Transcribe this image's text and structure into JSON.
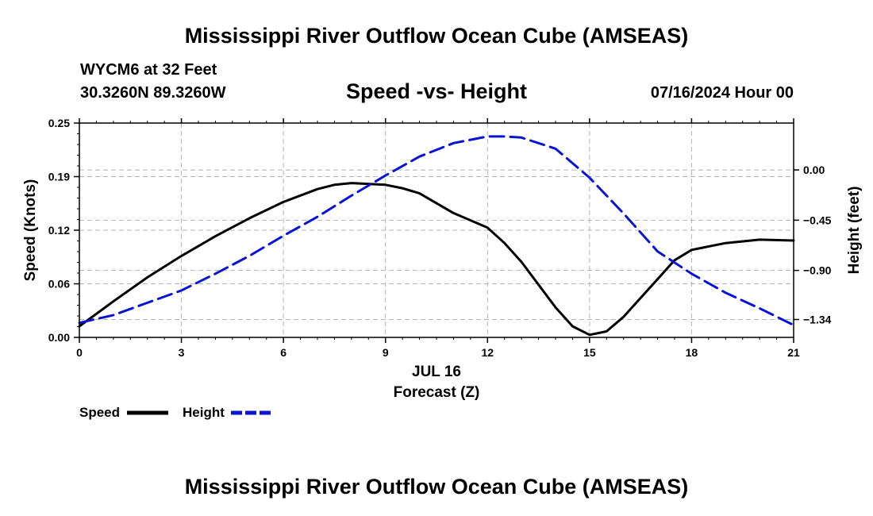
{
  "header": {
    "title": "Mississippi River Outflow Ocean Cube (AMSEAS)",
    "station": "WYCM6 at 32 Feet",
    "coordinates": "30.3260N  89.3260W",
    "chart_title": "Speed -vs- Height",
    "datetime": "07/16/2024 Hour 00"
  },
  "footer": {
    "title": "Mississippi River Outflow Ocean Cube (AMSEAS)"
  },
  "colors": {
    "speed": "#000000",
    "height": "#0a14d2",
    "grid": "#b4b4b4"
  },
  "chart_data": {
    "type": "line",
    "title": "Speed -vs- Height",
    "xlabel": "Forecast (Z)",
    "xlabel_date": "JUL 16",
    "ylabel": "Speed (Knots)",
    "y2label": "Height (feet)",
    "xlim": [
      0,
      21
    ],
    "ylim": [
      0,
      0.25
    ],
    "y2lim": [
      -1.5,
      0.42
    ],
    "x_ticks": [
      0,
      3,
      6,
      9,
      12,
      15,
      18,
      21
    ],
    "x_tick_labels": [
      "0",
      "3",
      "6",
      "9",
      "12",
      "15",
      "18",
      "21"
    ],
    "y_ticks": [
      0,
      0.0625,
      0.125,
      0.1875,
      0.25
    ],
    "y_tick_labels": [
      "0.00",
      "0.06",
      "0.12",
      "0.19",
      "0.25"
    ],
    "y2_ticks": [
      0.0,
      -0.45,
      -0.9,
      -1.34
    ],
    "y2_tick_labels": [
      "0.00",
      "−0.45",
      "−0.90",
      "−1.34"
    ],
    "grid": true,
    "legend": [
      {
        "label": "Speed",
        "style": "solid"
      },
      {
        "label": "Height",
        "style": "dashed"
      }
    ],
    "series": [
      {
        "name": "Speed",
        "axis": "left",
        "x": [
          0,
          1,
          2,
          3,
          4,
          5,
          6,
          7,
          7.5,
          8,
          9,
          9.5,
          10,
          11,
          12,
          12.5,
          13,
          14,
          14.5,
          15,
          15.5,
          16,
          17,
          17.5,
          18,
          19,
          20,
          21
        ],
        "values": [
          0.013,
          0.042,
          0.07,
          0.095,
          0.118,
          0.139,
          0.158,
          0.173,
          0.178,
          0.18,
          0.178,
          0.174,
          0.168,
          0.145,
          0.128,
          0.11,
          0.088,
          0.035,
          0.013,
          0.003,
          0.007,
          0.024,
          0.068,
          0.09,
          0.102,
          0.11,
          0.114,
          0.113
        ]
      },
      {
        "name": "Height",
        "axis": "right",
        "x": [
          0,
          1,
          2,
          3,
          4,
          5,
          6,
          7,
          8,
          9,
          10,
          11,
          12,
          12.5,
          13,
          14,
          15,
          16,
          17,
          18,
          19,
          20,
          21
        ],
        "values": [
          -1.37,
          -1.3,
          -1.19,
          -1.08,
          -0.93,
          -0.77,
          -0.59,
          -0.42,
          -0.23,
          -0.05,
          0.12,
          0.24,
          0.3,
          0.3,
          0.29,
          0.19,
          -0.07,
          -0.39,
          -0.73,
          -0.93,
          -1.1,
          -1.24,
          -1.39
        ]
      }
    ]
  }
}
